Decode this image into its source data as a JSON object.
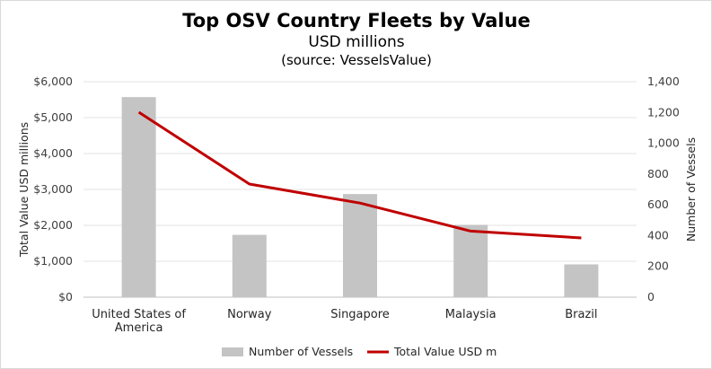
{
  "chart_data": {
    "type": "bar",
    "title": "Top OSV Country Fleets by Value",
    "subtitle": "USD millions",
    "source": "(source: VesselsValue)",
    "categories": [
      [
        "United States of",
        "America"
      ],
      [
        "Norway"
      ],
      [
        "Singapore"
      ],
      [
        "Malaysia"
      ],
      [
        "Brazil"
      ]
    ],
    "category_names": [
      "United States of America",
      "Norway",
      "Singapore",
      "Malaysia",
      "Brazil"
    ],
    "series": [
      {
        "name": "Number of Vessels",
        "type": "bar",
        "axis": "right",
        "color": "#c4c4c4",
        "values": [
          1300,
          405,
          670,
          470,
          213
        ]
      },
      {
        "name": "Total Value USD m",
        "type": "line",
        "axis": "left",
        "color": "#c00000",
        "values": [
          5150,
          3150,
          2620,
          1840,
          1650
        ]
      }
    ],
    "y_left": {
      "label": "Total Value  USD  millions",
      "min": 0,
      "max": 6000,
      "step": 1000,
      "tick_labels": [
        "$0",
        "$1,000",
        "$2,000",
        "$3,000",
        "$4,000",
        "$5,000",
        "$6,000"
      ]
    },
    "y_right": {
      "label": "Number  of Vessels",
      "min": 0,
      "max": 1400,
      "step": 200,
      "tick_labels": [
        "0",
        "200",
        "400",
        "600",
        "800",
        "1,000",
        "1,200",
        "1,400"
      ]
    },
    "grid": true,
    "legend_position": "bottom"
  }
}
